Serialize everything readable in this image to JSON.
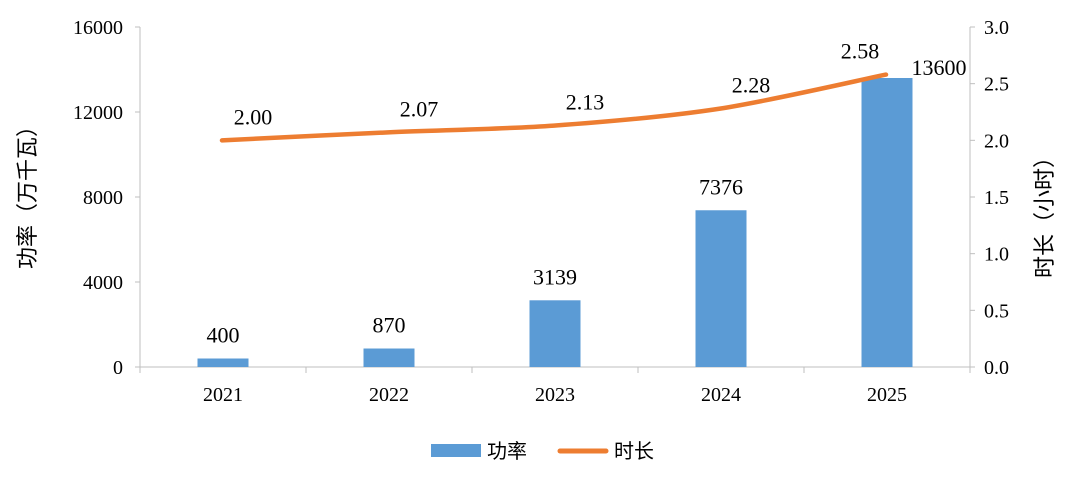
{
  "chart_data": {
    "type": "bar",
    "categories": [
      "2021",
      "2022",
      "2023",
      "2024",
      "2025"
    ],
    "series": [
      {
        "name": "功率",
        "type": "bar",
        "axis": "left",
        "color": "#5B9BD5",
        "values": [
          400,
          870,
          3139,
          7376,
          13600
        ],
        "labels": [
          "400",
          "870",
          "3139",
          "7376",
          "13600"
        ]
      },
      {
        "name": "时长",
        "type": "line",
        "axis": "right",
        "color": "#ED7D31",
        "values": [
          2.0,
          2.07,
          2.13,
          2.28,
          2.58
        ],
        "labels": [
          "2.00",
          "2.07",
          "2.13",
          "2.28",
          "2.58"
        ]
      }
    ],
    "y_left": {
      "label": "功率（万千瓦）",
      "min": 0,
      "max": 16000,
      "ticks": [
        "0",
        "4000",
        "8000",
        "12000",
        "16000"
      ]
    },
    "y_right": {
      "label": "时长（小时）",
      "min": 0,
      "max": 3.0,
      "ticks": [
        "0.0",
        "0.5",
        "1.0",
        "1.5",
        "2.0",
        "2.5",
        "3.0"
      ]
    },
    "legend": {
      "position": "bottom",
      "items": [
        "功率",
        "时长"
      ]
    },
    "grid": false
  }
}
